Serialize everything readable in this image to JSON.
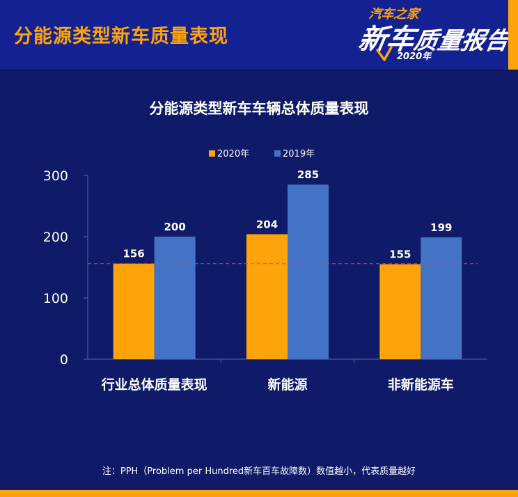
{
  "header": {
    "title": "分能源类型新车质量表现",
    "logo": {
      "top": "汽车之家",
      "main_big": "新车",
      "main_rest": "质量报告",
      "year": "2020年",
      "accent_color": "#ffa30a"
    }
  },
  "chart_data": {
    "type": "bar",
    "title": "分能源类型新车车辆总体质量表现",
    "categories": [
      "行业总体质量表现",
      "新能源",
      "非新能源车"
    ],
    "series": [
      {
        "name": "2020年",
        "color": "#ffa30a",
        "values": [
          156,
          204,
          155
        ]
      },
      {
        "name": "2019年",
        "color": "#4472c4",
        "values": [
          200,
          285,
          199
        ]
      }
    ],
    "xlabel": "",
    "ylabel": "",
    "ylim": [
      0,
      300
    ],
    "yticks": [
      0,
      100,
      200,
      300
    ],
    "reference_line": {
      "value": 156,
      "style": "dashed",
      "color": "#c0504d"
    },
    "legend_position": "top-center",
    "grid": false
  },
  "footer": {
    "note": "注：PPH（Problem per Hundred新车百车故障数）数值越小，代表质量越好"
  }
}
